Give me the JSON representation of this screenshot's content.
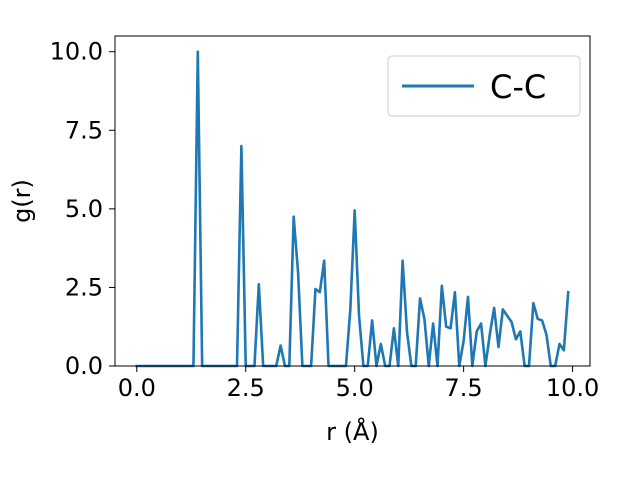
{
  "chart_data": {
    "type": "line",
    "title": "",
    "xlabel": "r (Å)",
    "ylabel": "g(r)",
    "xlim": [
      -0.5,
      10.4
    ],
    "ylim": [
      0,
      10.5
    ],
    "grid": false,
    "legend": {
      "placement": "top-right"
    },
    "xticks": [
      {
        "value": 0.0,
        "label": "0.0"
      },
      {
        "value": 2.5,
        "label": "2.5"
      },
      {
        "value": 5.0,
        "label": "5.0"
      },
      {
        "value": 7.5,
        "label": "7.5"
      },
      {
        "value": 10.0,
        "label": "10.0"
      }
    ],
    "yticks": [
      {
        "value": 0.0,
        "label": "0.0"
      },
      {
        "value": 2.5,
        "label": "2.5"
      },
      {
        "value": 5.0,
        "label": "5.0"
      },
      {
        "value": 7.5,
        "label": "7.5"
      },
      {
        "value": 10.0,
        "label": "10.0"
      }
    ],
    "series": [
      {
        "name": "C-C",
        "color": "#1f77b4",
        "x": [
          0.0,
          0.1,
          0.2,
          0.3,
          0.4,
          0.5,
          0.6,
          0.7,
          0.8,
          0.9,
          1.0,
          1.1,
          1.2,
          1.3,
          1.4,
          1.5,
          1.6,
          1.7,
          1.8,
          1.9,
          2.0,
          2.1,
          2.2,
          2.3,
          2.4,
          2.5,
          2.6,
          2.7,
          2.8,
          2.9,
          3.0,
          3.1,
          3.2,
          3.3,
          3.4,
          3.5,
          3.6,
          3.7,
          3.8,
          3.9,
          4.0,
          4.1,
          4.2,
          4.3,
          4.4,
          4.5,
          4.6,
          4.7,
          4.8,
          4.9,
          5.0,
          5.1,
          5.2,
          5.3,
          5.4,
          5.5,
          5.6,
          5.7,
          5.8,
          5.9,
          6.0,
          6.1,
          6.2,
          6.3,
          6.4,
          6.5,
          6.6,
          6.7,
          6.8,
          6.9,
          7.0,
          7.1,
          7.2,
          7.3,
          7.4,
          7.5,
          7.6,
          7.7,
          7.8,
          7.9,
          8.0,
          8.1,
          8.2,
          8.3,
          8.4,
          8.5,
          8.6,
          8.7,
          8.8,
          8.9,
          9.0,
          9.1,
          9.2,
          9.3,
          9.4,
          9.5,
          9.6,
          9.7,
          9.8,
          9.9
        ],
        "y": [
          0,
          0,
          0,
          0,
          0,
          0,
          0,
          0,
          0,
          0,
          0,
          0,
          0,
          0,
          10.0,
          0,
          0,
          0,
          0,
          0,
          0,
          0,
          0,
          0,
          7.0,
          0,
          0,
          0,
          2.6,
          0,
          0,
          0,
          0,
          0.65,
          0,
          0,
          4.75,
          3.0,
          0,
          0,
          0,
          2.45,
          2.35,
          3.35,
          0,
          0,
          0,
          0,
          0,
          1.8,
          4.95,
          1.6,
          0,
          0,
          1.45,
          0,
          0.7,
          0,
          0,
          1.2,
          0,
          3.35,
          1.1,
          0,
          0,
          2.15,
          1.5,
          0,
          1.35,
          0,
          2.55,
          1.25,
          1.2,
          2.35,
          0,
          0.8,
          2.2,
          0,
          1.1,
          1.35,
          0,
          1.0,
          1.85,
          0.6,
          1.8,
          1.6,
          1.4,
          0.85,
          1.1,
          0,
          0,
          2.0,
          1.5,
          1.45,
          1.0,
          0,
          0,
          0.7,
          0.5,
          2.35
        ]
      }
    ]
  }
}
